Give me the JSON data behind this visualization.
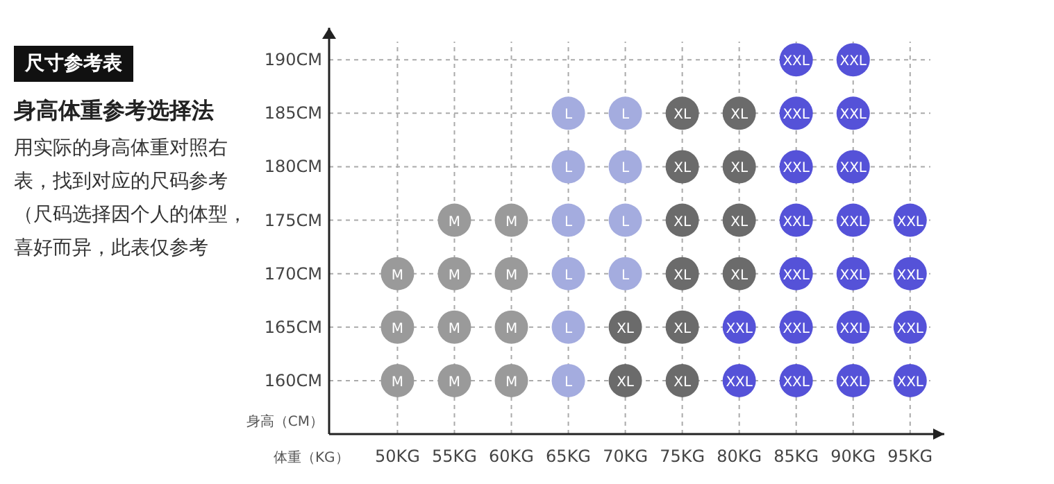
{
  "chart_data": {
    "type": "scatter",
    "title": "尺寸参考表",
    "subtitle": "身高体重参考选择法",
    "annotations": [
      "用实际的身高体重对照右表，找到对应的尺码参考（尺码选择因个人的体型，喜好而异，此表仅参考"
    ],
    "xlabel": "体重（KG）",
    "ylabel": "身高（CM）",
    "xlim": [
      44,
      98
    ],
    "ylim": [
      155,
      193
    ],
    "xticks": [
      {
        "value": 50,
        "label": "50KG"
      },
      {
        "value": 55,
        "label": "55KG"
      },
      {
        "value": 60,
        "label": "60KG"
      },
      {
        "value": 65,
        "label": "65KG"
      },
      {
        "value": 70,
        "label": "70KG"
      },
      {
        "value": 75,
        "label": "75KG"
      },
      {
        "value": 80,
        "label": "80KG"
      },
      {
        "value": 85,
        "label": "85KG"
      },
      {
        "value": 90,
        "label": "90KG"
      },
      {
        "value": 95,
        "label": "95KG"
      }
    ],
    "yticks": [
      {
        "value": 160,
        "label": "160CM"
      },
      {
        "value": 165,
        "label": "165CM"
      },
      {
        "value": 170,
        "label": "170CM"
      },
      {
        "value": 175,
        "label": "175CM"
      },
      {
        "value": 180,
        "label": "180CM"
      },
      {
        "value": 185,
        "label": "185CM"
      },
      {
        "value": 190,
        "label": "190CM"
      }
    ],
    "grid": true,
    "legend": false,
    "marker": "circle",
    "series": [
      {
        "name": "M",
        "color": "#9a9a9a",
        "x": [
          55,
          60,
          50,
          55,
          60,
          50,
          55,
          60,
          50,
          55,
          60
        ],
        "values": [
          175,
          175,
          170,
          170,
          170,
          165,
          165,
          165,
          160,
          160,
          160
        ]
      },
      {
        "name": "L",
        "color": "#a4acdf",
        "x": [
          65,
          70,
          65,
          70,
          65,
          70,
          65,
          70,
          65,
          65
        ],
        "values": [
          185,
          185,
          180,
          180,
          175,
          175,
          170,
          170,
          165,
          160
        ]
      },
      {
        "name": "XL",
        "color": "#6b6b6b",
        "x": [
          75,
          80,
          75,
          80,
          75,
          80,
          75,
          80,
          70,
          75,
          70,
          75
        ],
        "values": [
          185,
          185,
          180,
          180,
          175,
          175,
          170,
          170,
          165,
          165,
          160,
          160
        ]
      },
      {
        "name": "XXL",
        "color": "#5552d8",
        "x": [
          85,
          90,
          85,
          90,
          85,
          90,
          85,
          90,
          95,
          85,
          90,
          95,
          80,
          85,
          90,
          95,
          80,
          85,
          90,
          95
        ],
        "values": [
          190,
          190,
          185,
          185,
          180,
          180,
          175,
          175,
          175,
          170,
          170,
          170,
          165,
          165,
          165,
          165,
          160,
          160,
          160,
          160
        ]
      }
    ]
  }
}
